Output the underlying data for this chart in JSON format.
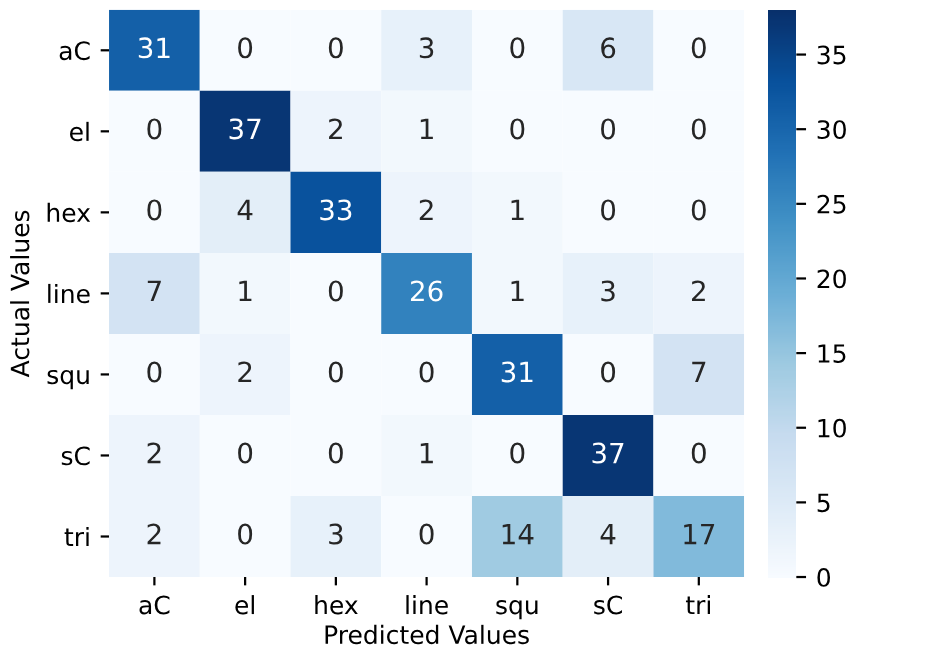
{
  "chart_data": {
    "type": "heatmap",
    "xlabel": "Predicted Values",
    "ylabel": "Actual Values",
    "categories": [
      "aC",
      "el",
      "hex",
      "line",
      "squ",
      "sC",
      "tri"
    ],
    "y_categories": [
      "aC",
      "el",
      "hex",
      "line",
      "squ",
      "sC",
      "tri"
    ],
    "cells": [
      [
        31,
        0,
        0,
        3,
        0,
        6,
        0
      ],
      [
        0,
        37,
        2,
        1,
        0,
        0,
        0
      ],
      [
        0,
        4,
        33,
        2,
        1,
        0,
        0
      ],
      [
        7,
        1,
        0,
        26,
        1,
        3,
        2
      ],
      [
        0,
        2,
        0,
        0,
        31,
        0,
        7
      ],
      [
        2,
        0,
        0,
        1,
        0,
        37,
        0
      ],
      [
        2,
        0,
        3,
        0,
        14,
        4,
        17
      ]
    ],
    "clim": [
      0,
      38
    ],
    "cticks": [
      0,
      5,
      10,
      15,
      20,
      25,
      30,
      35
    ],
    "data_labels": true
  }
}
